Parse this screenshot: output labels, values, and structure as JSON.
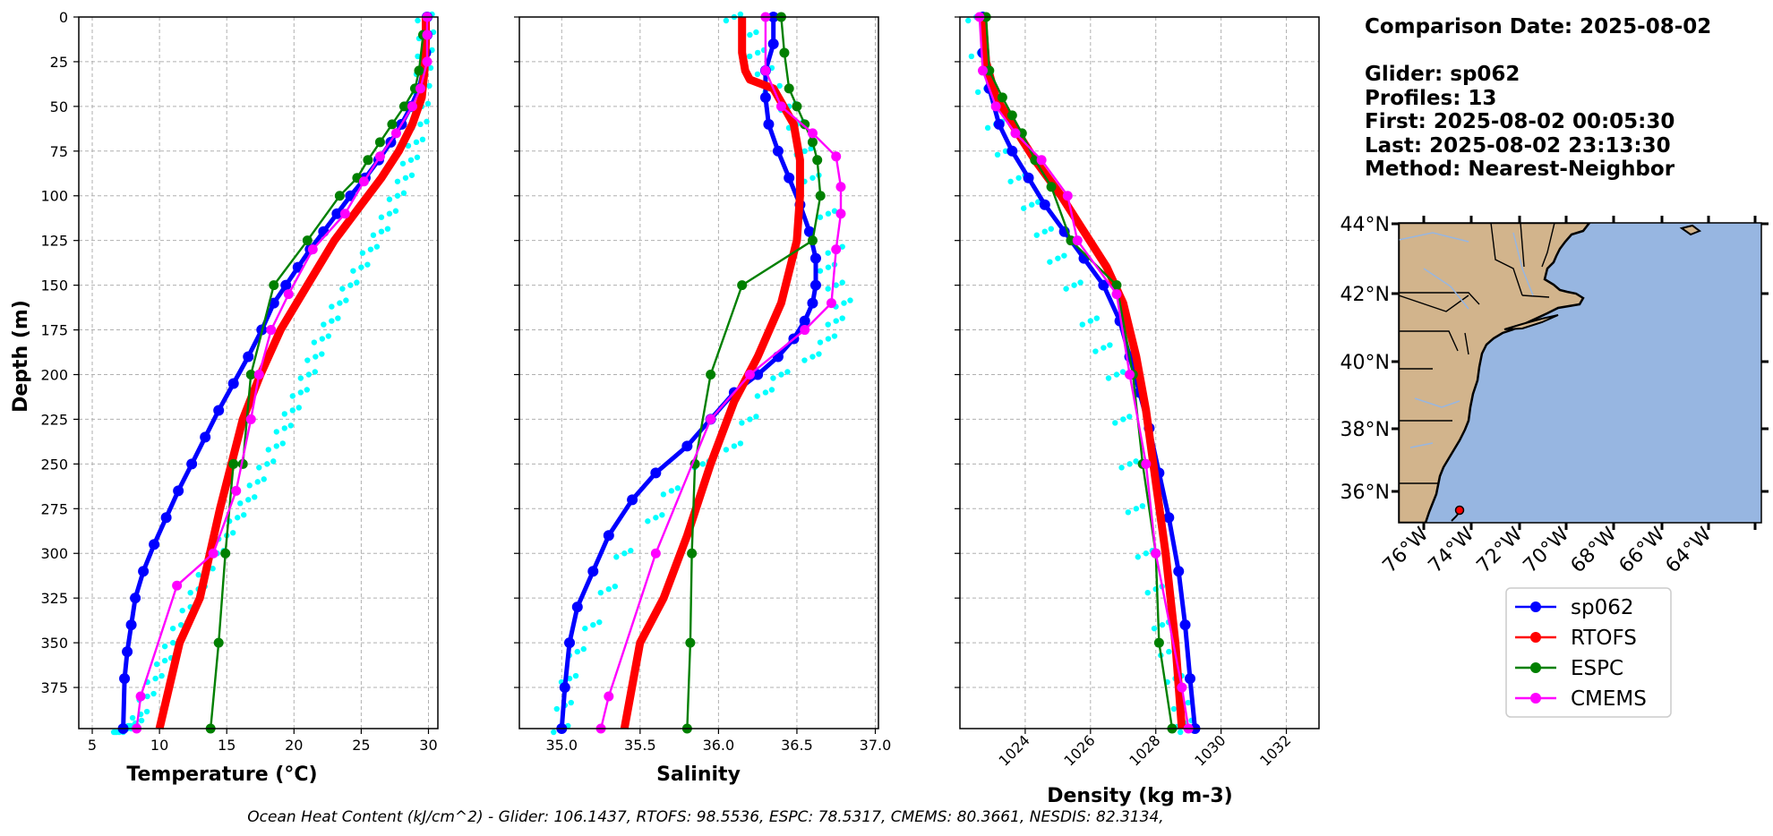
{
  "chart_data": [
    {
      "type": "line",
      "id": "temperature",
      "xlabel": "Temperature (°C)",
      "ylabel": "Depth (m)",
      "xlim": [
        4,
        30.7
      ],
      "ylim": [
        398,
        0
      ],
      "xticks": [
        5,
        10,
        15,
        20,
        25,
        30
      ],
      "yticks": [
        0,
        25,
        50,
        75,
        100,
        125,
        150,
        175,
        200,
        225,
        250,
        275,
        300,
        325,
        350,
        375
      ],
      "series": [
        {
          "name": "glider-profiles",
          "color": "#00ffff",
          "style": "scatter",
          "x": [
            29.8,
            29.9,
            29.8,
            29.7,
            29.6,
            29.5,
            29.4,
            29.1,
            28.7,
            28.3,
            27.7,
            27.1,
            26.5,
            25.7,
            25.0,
            24.2,
            23.4,
            22.8,
            22.1,
            21.6,
            21.1,
            20.5,
            19.9,
            19.3,
            18.7,
            18.0,
            17.3,
            16.6,
            15.8,
            15.0,
            14.3,
            13.5,
            12.9,
            12.3,
            11.6,
            11.0,
            10.4,
            9.7,
            9.1,
            8.6,
            8.2,
            7.9,
            7.6,
            7.4,
            7.3,
            7.2
          ],
          "y": [
            0,
            10,
            20,
            30,
            40,
            50,
            60,
            70,
            80,
            90,
            100,
            110,
            120,
            130,
            140,
            150,
            160,
            170,
            180,
            190,
            200,
            210,
            220,
            230,
            240,
            250,
            260,
            270,
            280,
            290,
            300,
            310,
            320,
            330,
            340,
            350,
            360,
            370,
            380,
            390,
            395,
            398,
            398,
            398,
            398,
            398
          ]
        },
        {
          "name": "sp062",
          "color": "#0000ff",
          "style": "thick-markers",
          "x": [
            29.9,
            29.9,
            29.8,
            29.6,
            29.3,
            28.7,
            28.0,
            27.2,
            26.3,
            25.3,
            24.2,
            23.2,
            22.2,
            21.2,
            20.3,
            19.4,
            18.5,
            17.6,
            16.6,
            15.5,
            14.4,
            13.4,
            12.4,
            11.4,
            10.5,
            9.6,
            8.8,
            8.2,
            7.9,
            7.6,
            7.4,
            7.3
          ],
          "y": [
            0,
            10,
            20,
            30,
            40,
            50,
            60,
            70,
            80,
            90,
            100,
            110,
            120,
            130,
            140,
            150,
            160,
            175,
            190,
            205,
            220,
            235,
            250,
            265,
            280,
            295,
            310,
            325,
            340,
            355,
            370,
            398
          ]
        },
        {
          "name": "RTOFS",
          "color": "#ff0000",
          "style": "thick",
          "x": [
            29.8,
            29.8,
            29.7,
            29.5,
            28.8,
            27.8,
            26.5,
            25.0,
            23.0,
            21.0,
            19.0,
            17.5,
            16.2,
            14.5,
            13.0,
            11.5,
            10.0
          ],
          "y": [
            0,
            15,
            30,
            45,
            60,
            75,
            90,
            105,
            125,
            150,
            175,
            200,
            225,
            275,
            325,
            350,
            398
          ]
        },
        {
          "name": "ESPC",
          "color": "#008000",
          "style": "markers",
          "x": [
            29.6,
            29.3,
            29.0,
            28.2,
            27.3,
            26.4,
            25.5,
            24.7,
            23.4,
            21.0,
            18.5,
            16.8,
            16.2,
            15.5,
            14.9,
            14.4,
            13.8
          ],
          "y": [
            10,
            30,
            40,
            50,
            60,
            70,
            80,
            90,
            100,
            125,
            150,
            200,
            250,
            250,
            300,
            350,
            398
          ]
        },
        {
          "name": "CMEMS",
          "color": "#ff00ff",
          "style": "markers",
          "x": [
            29.9,
            29.9,
            29.9,
            29.4,
            28.8,
            27.6,
            26.4,
            25.2,
            23.8,
            21.4,
            19.6,
            18.3,
            17.4,
            16.8,
            15.7,
            14.0,
            11.3,
            8.6,
            8.3
          ],
          "y": [
            0,
            10,
            25,
            40,
            50,
            65,
            78,
            92,
            110,
            130,
            155,
            175,
            200,
            225,
            265,
            300,
            318,
            380,
            398
          ]
        }
      ]
    },
    {
      "type": "line",
      "id": "salinity",
      "xlabel": "Salinity",
      "ylabel": "",
      "xlim": [
        34.73,
        37.02
      ],
      "ylim": [
        398,
        0
      ],
      "xticks": [
        "35.0",
        "35.5",
        "36.0",
        "36.5",
        "37.0"
      ],
      "series": [
        {
          "name": "glider-profiles",
          "color": "#00ffff",
          "style": "scatter",
          "x": [
            36.1,
            36.2,
            36.25,
            36.3,
            36.35,
            36.45,
            36.5,
            36.55,
            36.6,
            36.7,
            36.75,
            36.7,
            36.75,
            36.8,
            36.75,
            36.7,
            36.6,
            36.4,
            36.3,
            36.2,
            36.1,
            35.9,
            35.7,
            35.6,
            35.4,
            35.3,
            35.2,
            35.1,
            35.05,
            35.02,
            35.0
          ],
          "y": [
            0,
            10,
            20,
            30,
            40,
            50,
            60,
            75,
            90,
            110,
            130,
            140,
            150,
            160,
            170,
            180,
            190,
            200,
            210,
            225,
            240,
            250,
            265,
            280,
            300,
            320,
            340,
            355,
            370,
            385,
            398
          ]
        },
        {
          "name": "sp062",
          "color": "#0000ff",
          "style": "thick-markers",
          "x": [
            36.35,
            36.35,
            36.3,
            36.3,
            36.32,
            36.38,
            36.45,
            36.52,
            36.58,
            36.62,
            36.62,
            36.6,
            36.55,
            36.48,
            36.38,
            36.25,
            36.1,
            35.95,
            35.8,
            35.6,
            35.45,
            35.3,
            35.2,
            35.1,
            35.05,
            35.02,
            35.0
          ],
          "y": [
            0,
            15,
            30,
            45,
            60,
            75,
            90,
            105,
            120,
            135,
            150,
            160,
            170,
            180,
            190,
            200,
            210,
            225,
            240,
            255,
            270,
            290,
            310,
            330,
            350,
            375,
            398
          ]
        },
        {
          "name": "RTOFS",
          "color": "#ff0000",
          "style": "thick",
          "x": [
            36.15,
            36.15,
            36.17,
            36.2,
            36.35,
            36.48,
            36.52,
            36.52,
            36.5,
            36.4,
            36.25,
            36.1,
            35.95,
            35.8,
            35.65,
            35.5,
            35.4
          ],
          "y": [
            0,
            20,
            30,
            35,
            40,
            60,
            80,
            100,
            125,
            160,
            190,
            215,
            250,
            290,
            325,
            350,
            398
          ]
        },
        {
          "name": "ESPC",
          "color": "#008000",
          "style": "markers",
          "x": [
            36.4,
            36.42,
            36.45,
            36.5,
            36.55,
            36.6,
            36.63,
            36.65,
            36.6,
            36.15,
            35.95,
            35.85,
            35.83,
            35.82,
            35.8
          ],
          "y": [
            0,
            20,
            40,
            50,
            60,
            70,
            80,
            100,
            125,
            150,
            200,
            250,
            300,
            350,
            398
          ]
        },
        {
          "name": "CMEMS",
          "color": "#ff00ff",
          "style": "markers",
          "x": [
            36.3,
            36.3,
            36.4,
            36.6,
            36.75,
            36.78,
            36.78,
            36.75,
            36.72,
            36.55,
            36.2,
            35.95,
            35.6,
            35.3,
            35.25
          ],
          "y": [
            0,
            30,
            50,
            65,
            78,
            95,
            110,
            130,
            160,
            175,
            200,
            225,
            300,
            380,
            398
          ]
        }
      ]
    },
    {
      "type": "line",
      "id": "density",
      "xlabel": "Density (kg m-3)",
      "ylabel": "",
      "xlim": [
        1022.0,
        1033.0
      ],
      "ylim": [
        398,
        0
      ],
      "xticks": [
        1024,
        1026,
        1028,
        1030,
        1032
      ],
      "series": [
        {
          "name": "glider-profiles",
          "color": "#00ffff",
          "style": "scatter",
          "x": [
            1022.5,
            1022.6,
            1022.8,
            1023.1,
            1023.4,
            1023.8,
            1024.2,
            1024.6,
            1025.0,
            1025.5,
            1026.0,
            1026.4,
            1026.8,
            1027.0,
            1027.2,
            1027.4,
            1027.7,
            1028.0,
            1028.2,
            1028.4,
            1028.6,
            1028.8,
            1028.9,
            1029.0
          ],
          "y": [
            0,
            20,
            40,
            60,
            75,
            90,
            105,
            120,
            135,
            150,
            170,
            185,
            200,
            225,
            250,
            275,
            300,
            320,
            340,
            355,
            370,
            385,
            395,
            398
          ]
        },
        {
          "name": "sp062",
          "color": "#0000ff",
          "style": "thick-markers",
          "x": [
            1022.7,
            1022.7,
            1022.9,
            1023.2,
            1023.6,
            1024.1,
            1024.6,
            1025.2,
            1025.8,
            1026.4,
            1026.9,
            1027.2,
            1027.5,
            1027.8,
            1028.1,
            1028.4,
            1028.7,
            1028.9,
            1029.05,
            1029.2
          ],
          "y": [
            0,
            20,
            40,
            60,
            75,
            90,
            105,
            120,
            135,
            150,
            170,
            190,
            210,
            230,
            255,
            280,
            310,
            340,
            370,
            398
          ]
        },
        {
          "name": "RTOFS",
          "color": "#ff0000",
          "style": "thick",
          "x": [
            1022.7,
            1022.8,
            1023.1,
            1023.6,
            1024.3,
            1025.1,
            1025.8,
            1026.5,
            1027.0,
            1027.4,
            1027.7,
            1028.0,
            1028.3,
            1028.6,
            1028.8
          ],
          "y": [
            0,
            25,
            45,
            60,
            80,
            100,
            120,
            140,
            160,
            190,
            220,
            260,
            300,
            350,
            398
          ]
        },
        {
          "name": "ESPC",
          "color": "#008000",
          "style": "markers",
          "x": [
            1022.8,
            1022.9,
            1023.3,
            1023.6,
            1023.9,
            1024.3,
            1024.8,
            1025.4,
            1026.8,
            1027.3,
            1027.6,
            1028.0,
            1028.1,
            1028.5
          ],
          "y": [
            0,
            30,
            45,
            55,
            65,
            80,
            95,
            125,
            150,
            200,
            250,
            300,
            350,
            398
          ]
        },
        {
          "name": "CMEMS",
          "color": "#ff00ff",
          "style": "markers",
          "x": [
            1022.6,
            1022.7,
            1023.1,
            1023.7,
            1024.5,
            1025.3,
            1025.6,
            1026.8,
            1027.2,
            1027.7,
            1028.0,
            1028.8,
            1029.0
          ],
          "y": [
            0,
            30,
            50,
            65,
            80,
            100,
            125,
            155,
            200,
            250,
            300,
            375,
            398
          ]
        }
      ]
    }
  ],
  "info": {
    "comparison_date": "Comparison Date: 2025-08-02",
    "glider": "Glider: sp062",
    "profiles": "Profiles: 13",
    "first": "First: 2025-08-02 00:05:30",
    "last": "Last: 2025-08-02 23:13:30",
    "method": "Method: Nearest-Neighbor"
  },
  "map": {
    "lat_labels": [
      "44°N",
      "42°N",
      "40°N",
      "38°N",
      "36°N"
    ],
    "lon_labels": [
      "76°W",
      "74°W",
      "72°W",
      "70°W",
      "68°W",
      "66°W",
      "64°W"
    ],
    "land_color": "#d2b48c",
    "ocean_color": "#97b6e1"
  },
  "legend": {
    "items": [
      {
        "label": "sp062",
        "color": "#0000ff"
      },
      {
        "label": "RTOFS",
        "color": "#ff0000"
      },
      {
        "label": "ESPC",
        "color": "#008000"
      },
      {
        "label": "CMEMS",
        "color": "#ff00ff"
      }
    ]
  },
  "footer": "Ocean Heat Content (kJ/cm^2) - Glider: 106.1437,  RTOFS: 98.5536,  ESPC: 78.5317,  CMEMS: 80.3661,  NESDIS: 82.3134,"
}
